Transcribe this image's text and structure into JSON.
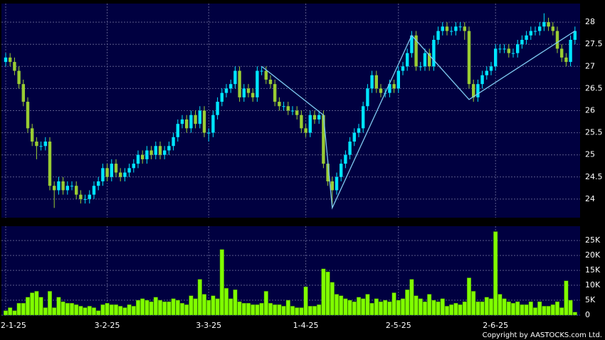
{
  "chart_data": [
    {
      "type": "candlestick",
      "categories": [
        "2-1-25",
        null,
        null,
        null,
        null,
        null,
        null,
        null,
        null,
        null,
        null,
        null,
        null,
        null,
        null,
        null,
        null,
        null,
        null,
        null,
        null,
        null,
        null,
        "3-2-25",
        null,
        null,
        null,
        null,
        null,
        null,
        null,
        null,
        null,
        null,
        null,
        null,
        null,
        null,
        null,
        null,
        null,
        null,
        null,
        null,
        null,
        null,
        "3-3-25",
        null,
        null,
        null,
        null,
        null,
        null,
        null,
        null,
        null,
        null,
        null,
        null,
        null,
        null,
        null,
        null,
        null,
        null,
        null,
        null,
        null,
        "1-4-25",
        null,
        null,
        null,
        null,
        null,
        null,
        null,
        null,
        null,
        null,
        null,
        null,
        null,
        null,
        null,
        null,
        null,
        null,
        null,
        null,
        "2-5-25",
        null,
        null,
        null,
        null,
        null,
        null,
        null,
        null,
        null,
        null,
        null,
        null,
        null,
        null,
        null,
        null,
        null,
        null,
        null,
        null,
        null,
        "2-6-25",
        null,
        null,
        null,
        null,
        null,
        null,
        null,
        null,
        null,
        null,
        null,
        null,
        null,
        null,
        null,
        null,
        null,
        null
      ],
      "open": [
        27.1,
        27.2,
        27.1,
        26.9,
        26.6,
        26.2,
        25.6,
        25.3,
        25.2,
        25.2,
        25.3,
        24.3,
        24.2,
        24.4,
        24.2,
        24.3,
        24.3,
        24.1,
        24.0,
        24.0,
        24.1,
        24.3,
        24.4,
        24.7,
        24.5,
        24.8,
        24.6,
        24.5,
        24.6,
        24.7,
        24.8,
        25.0,
        24.9,
        25.1,
        25.0,
        25.2,
        25.0,
        25.1,
        25.2,
        25.4,
        25.7,
        25.8,
        25.6,
        25.9,
        25.7,
        26.0,
        25.5,
        25.5,
        25.9,
        26.2,
        26.4,
        26.5,
        26.6,
        26.9,
        26.3,
        26.5,
        26.4,
        26.3,
        26.9,
        26.9,
        26.7,
        26.6,
        26.2,
        26.1,
        26.1,
        26.0,
        26.0,
        25.9,
        25.6,
        25.5,
        25.9,
        25.8,
        25.9,
        24.8,
        24.4,
        24.2,
        24.5,
        24.8,
        25.0,
        25.3,
        25.5,
        25.6,
        26.1,
        26.5,
        26.8,
        26.5,
        26.4,
        26.4,
        26.6,
        26.5,
        26.9,
        27.0,
        27.3,
        27.7,
        27.0,
        27.0,
        27.3,
        27.0,
        27.6,
        27.8,
        27.9,
        27.8,
        27.8,
        27.9,
        27.9,
        27.8,
        26.6,
        26.3,
        26.6,
        26.8,
        26.9,
        27.0,
        27.4,
        27.4,
        27.4,
        27.3,
        27.3,
        27.5,
        27.6,
        27.7,
        27.8,
        27.8,
        27.9,
        28.0,
        27.9,
        27.8,
        27.4,
        27.2,
        27.1,
        27.6
      ],
      "high": [
        27.3,
        27.3,
        27.2,
        27.0,
        26.7,
        26.3,
        25.7,
        25.4,
        25.3,
        25.4,
        25.4,
        24.4,
        24.5,
        24.5,
        24.4,
        24.4,
        24.4,
        24.2,
        24.1,
        24.2,
        24.4,
        24.5,
        24.8,
        24.8,
        24.9,
        24.9,
        24.7,
        24.7,
        24.8,
        24.9,
        25.1,
        25.1,
        25.2,
        25.2,
        25.3,
        25.3,
        25.2,
        25.3,
        25.5,
        25.8,
        25.9,
        25.9,
        26.0,
        26.0,
        26.1,
        26.1,
        25.6,
        26.0,
        26.3,
        26.5,
        26.6,
        26.7,
        27.0,
        27.0,
        26.6,
        26.6,
        26.5,
        27.0,
        27.0,
        27.0,
        26.8,
        26.7,
        26.3,
        26.2,
        26.2,
        26.1,
        26.1,
        26.0,
        25.7,
        26.0,
        26.0,
        26.0,
        26.0,
        24.9,
        24.5,
        24.6,
        24.9,
        25.1,
        25.4,
        25.6,
        25.7,
        26.2,
        26.6,
        26.9,
        26.9,
        26.6,
        26.5,
        26.7,
        26.7,
        27.0,
        27.1,
        27.4,
        27.8,
        27.8,
        27.1,
        27.4,
        27.4,
        27.7,
        27.9,
        28.0,
        28.0,
        27.9,
        28.0,
        28.0,
        28.0,
        27.9,
        26.7,
        26.7,
        26.9,
        27.0,
        27.1,
        27.5,
        27.5,
        27.5,
        27.5,
        27.4,
        27.6,
        27.7,
        27.8,
        27.9,
        27.9,
        28.0,
        28.2,
        28.1,
        28.0,
        27.9,
        27.5,
        27.3,
        27.7,
        27.9
      ],
      "low": [
        27.0,
        27.0,
        26.8,
        26.5,
        26.1,
        25.5,
        25.2,
        24.9,
        25.1,
        25.1,
        24.2,
        23.8,
        24.1,
        24.1,
        24.1,
        24.2,
        24.0,
        23.9,
        23.9,
        23.9,
        24.0,
        24.2,
        24.3,
        24.4,
        24.4,
        24.5,
        24.4,
        24.4,
        24.5,
        24.6,
        24.7,
        24.8,
        24.8,
        24.9,
        24.9,
        24.9,
        24.9,
        25.0,
        25.1,
        25.3,
        25.6,
        25.5,
        25.5,
        25.6,
        25.6,
        25.4,
        25.3,
        25.4,
        25.8,
        26.1,
        26.3,
        26.4,
        26.5,
        26.2,
        26.2,
        26.3,
        26.2,
        26.2,
        26.8,
        26.6,
        26.5,
        26.1,
        26.0,
        26.0,
        25.9,
        25.9,
        25.8,
        25.5,
        25.4,
        25.4,
        25.7,
        25.7,
        24.7,
        24.3,
        23.8,
        24.1,
        24.4,
        24.7,
        24.9,
        25.2,
        25.4,
        25.5,
        26.0,
        26.4,
        26.4,
        26.3,
        26.3,
        26.3,
        26.4,
        26.4,
        26.8,
        26.9,
        27.2,
        26.9,
        26.9,
        26.9,
        26.9,
        26.9,
        27.5,
        27.7,
        27.7,
        27.7,
        27.7,
        27.8,
        27.6,
        26.5,
        26.2,
        26.2,
        26.5,
        26.7,
        26.8,
        26.9,
        27.3,
        27.3,
        27.2,
        27.2,
        27.2,
        27.4,
        27.5,
        27.6,
        27.7,
        27.7,
        27.8,
        27.8,
        27.7,
        27.3,
        27.1,
        27.0,
        27.0,
        27.5
      ],
      "close": [
        27.2,
        27.1,
        26.9,
        26.6,
        26.2,
        25.6,
        25.3,
        25.2,
        25.2,
        25.3,
        24.3,
        24.2,
        24.4,
        24.2,
        24.3,
        24.3,
        24.1,
        24.0,
        24.0,
        24.1,
        24.3,
        24.4,
        24.7,
        24.5,
        24.8,
        24.6,
        24.5,
        24.6,
        24.7,
        24.8,
        25.0,
        24.9,
        25.1,
        25.0,
        25.2,
        25.0,
        25.1,
        25.2,
        25.4,
        25.7,
        25.8,
        25.6,
        25.9,
        25.7,
        26.0,
        25.5,
        25.5,
        25.9,
        26.2,
        26.4,
        26.5,
        26.6,
        26.9,
        26.3,
        26.5,
        26.4,
        26.3,
        26.9,
        26.9,
        26.7,
        26.6,
        26.2,
        26.1,
        26.1,
        26.0,
        26.0,
        25.9,
        25.6,
        25.5,
        25.9,
        25.8,
        25.9,
        24.8,
        24.4,
        24.2,
        24.5,
        24.8,
        25.0,
        25.3,
        25.5,
        25.6,
        26.1,
        26.5,
        26.8,
        26.5,
        26.4,
        26.4,
        26.6,
        26.5,
        26.9,
        27.0,
        27.3,
        27.7,
        27.0,
        27.0,
        27.3,
        27.0,
        27.6,
        27.8,
        27.9,
        27.8,
        27.8,
        27.9,
        27.9,
        27.8,
        26.6,
        26.3,
        26.6,
        26.8,
        26.9,
        27.0,
        27.4,
        27.4,
        27.4,
        27.3,
        27.3,
        27.5,
        27.6,
        27.7,
        27.8,
        27.8,
        27.9,
        28.0,
        27.9,
        27.8,
        27.4,
        27.2,
        27.1,
        27.6,
        27.8
      ],
      "up_color": "#00e5ff",
      "down_color": "#99cc33",
      "trend_line": {
        "color": "#7ec8f0",
        "x": [
          58,
          72,
          74,
          92,
          105,
          129
        ],
        "values": [
          27.0,
          25.9,
          23.8,
          27.7,
          26.25,
          27.8
        ]
      },
      "ylim": [
        23.58,
        28.42
      ],
      "yticks": [
        24,
        24.5,
        25,
        25.5,
        26,
        26.5,
        27,
        27.5,
        28
      ],
      "grid": true
    },
    {
      "type": "bar",
      "values": [
        1500,
        2500,
        1500,
        4000,
        4000,
        6000,
        7500,
        8000,
        6000,
        2500,
        8000,
        2500,
        6000,
        4500,
        4000,
        4000,
        3500,
        3000,
        2500,
        3000,
        2500,
        1500,
        3500,
        4000,
        3500,
        3500,
        3000,
        2500,
        3500,
        3000,
        5000,
        5500,
        5000,
        4500,
        6000,
        5000,
        4500,
        4500,
        5500,
        5000,
        4000,
        3500,
        6500,
        5500,
        12000,
        7000,
        5000,
        6500,
        5500,
        22000,
        9000,
        5500,
        8500,
        4500,
        4000,
        4000,
        3500,
        3500,
        4000,
        8000,
        4000,
        3500,
        3500,
        3000,
        5000,
        3000,
        2500,
        2500,
        9500,
        3000,
        3000,
        3500,
        15500,
        14500,
        11000,
        7000,
        6500,
        5500,
        5000,
        4500,
        6000,
        5500,
        7000,
        4000,
        5500,
        4500,
        5000,
        4500,
        7500,
        5000,
        5500,
        8500,
        12000,
        6500,
        5500,
        4500,
        7000,
        5000,
        4500,
        5500,
        3000,
        3500,
        4000,
        3500,
        4500,
        12500,
        8000,
        4500,
        4500,
        6000,
        5500,
        28000,
        7000,
        5500,
        4500,
        4000,
        4500,
        3500,
        3500,
        4500,
        2500,
        4500,
        3000,
        3000,
        3500,
        4500,
        2500,
        11500,
        5000,
        1000
      ],
      "color": "#80ff00",
      "ylim": [
        0,
        29800
      ],
      "yticks": [
        0,
        {
          "value": 5000,
          "label": "5K"
        },
        {
          "value": 10000,
          "label": "10K"
        },
        {
          "value": 15000,
          "label": "15K"
        },
        {
          "value": 20000,
          "label": "20K"
        },
        {
          "value": 25000,
          "label": "25K"
        }
      ],
      "grid": true
    }
  ],
  "footer": "Copyright by AASTOCKS.com Ltd."
}
